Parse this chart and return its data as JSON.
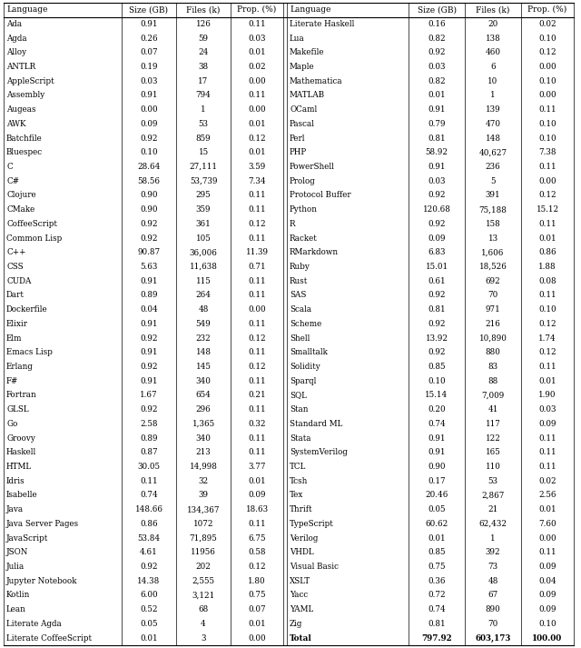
{
  "left_table": [
    [
      "Ada",
      "0.91",
      "126",
      "0.11"
    ],
    [
      "Agda",
      "0.26",
      "59",
      "0.03"
    ],
    [
      "Alloy",
      "0.07",
      "24",
      "0.01"
    ],
    [
      "ANTLR",
      "0.19",
      "38",
      "0.02"
    ],
    [
      "AppleScript",
      "0.03",
      "17",
      "0.00"
    ],
    [
      "Assembly",
      "0.91",
      "794",
      "0.11"
    ],
    [
      "Augeas",
      "0.00",
      "1",
      "0.00"
    ],
    [
      "AWK",
      "0.09",
      "53",
      "0.01"
    ],
    [
      "Batchfile",
      "0.92",
      "859",
      "0.12"
    ],
    [
      "Bluespec",
      "0.10",
      "15",
      "0.01"
    ],
    [
      "C",
      "28.64",
      "27,111",
      "3.59"
    ],
    [
      "C#",
      "58.56",
      "53,739",
      "7.34"
    ],
    [
      "Clojure",
      "0.90",
      "295",
      "0.11"
    ],
    [
      "CMake",
      "0.90",
      "359",
      "0.11"
    ],
    [
      "CoffeeScript",
      "0.92",
      "361",
      "0.12"
    ],
    [
      "Common Lisp",
      "0.92",
      "105",
      "0.11"
    ],
    [
      "C++",
      "90.87",
      "36,006",
      "11.39"
    ],
    [
      "CSS",
      "5.63",
      "11,638",
      "0.71"
    ],
    [
      "CUDA",
      "0.91",
      "115",
      "0.11"
    ],
    [
      "Dart",
      "0.89",
      "264",
      "0.11"
    ],
    [
      "Dockerfile",
      "0.04",
      "48",
      "0.00"
    ],
    [
      "Elixir",
      "0.91",
      "549",
      "0.11"
    ],
    [
      "Elm",
      "0.92",
      "232",
      "0.12"
    ],
    [
      "Emacs Lisp",
      "0.91",
      "148",
      "0.11"
    ],
    [
      "Erlang",
      "0.92",
      "145",
      "0.12"
    ],
    [
      "F#",
      "0.91",
      "340",
      "0.11"
    ],
    [
      "Fortran",
      "1.67",
      "654",
      "0.21"
    ],
    [
      "GLSL",
      "0.92",
      "296",
      "0.11"
    ],
    [
      "Go",
      "2.58",
      "1,365",
      "0.32"
    ],
    [
      "Groovy",
      "0.89",
      "340",
      "0.11"
    ],
    [
      "Haskell",
      "0.87",
      "213",
      "0.11"
    ],
    [
      "HTML",
      "30.05",
      "14,998",
      "3.77"
    ],
    [
      "Idris",
      "0.11",
      "32",
      "0.01"
    ],
    [
      "Isabelle",
      "0.74",
      "39",
      "0.09"
    ],
    [
      "Java",
      "148.66",
      "134,367",
      "18.63"
    ],
    [
      "Java Server Pages",
      "0.86",
      "1072",
      "0.11"
    ],
    [
      "JavaScript",
      "53.84",
      "71,895",
      "6.75"
    ],
    [
      "JSON",
      "4.61",
      "11956",
      "0.58"
    ],
    [
      "Julia",
      "0.92",
      "202",
      "0.12"
    ],
    [
      "Jupyter Notebook",
      "14.38",
      "2,555",
      "1.80"
    ],
    [
      "Kotlin",
      "6.00",
      "3,121",
      "0.75"
    ],
    [
      "Lean",
      "0.52",
      "68",
      "0.07"
    ],
    [
      "Literate Agda",
      "0.05",
      "4",
      "0.01"
    ],
    [
      "Literate CoffeeScript",
      "0.01",
      "3",
      "0.00"
    ]
  ],
  "right_table": [
    [
      "Literate Haskell",
      "0.16",
      "20",
      "0.02"
    ],
    [
      "Lua",
      "0.82",
      "138",
      "0.10"
    ],
    [
      "Makefile",
      "0.92",
      "460",
      "0.12"
    ],
    [
      "Maple",
      "0.03",
      "6",
      "0.00"
    ],
    [
      "Mathematica",
      "0.82",
      "10",
      "0.10"
    ],
    [
      "MATLAB",
      "0.01",
      "1",
      "0.00"
    ],
    [
      "OCaml",
      "0.91",
      "139",
      "0.11"
    ],
    [
      "Pascal",
      "0.79",
      "470",
      "0.10"
    ],
    [
      "Perl",
      "0.81",
      "148",
      "0.10"
    ],
    [
      "PHP",
      "58.92",
      "40,627",
      "7.38"
    ],
    [
      "PowerShell",
      "0.91",
      "236",
      "0.11"
    ],
    [
      "Prolog",
      "0.03",
      "5",
      "0.00"
    ],
    [
      "Protocol Buffer",
      "0.92",
      "391",
      "0.12"
    ],
    [
      "Python",
      "120.68",
      "75,188",
      "15.12"
    ],
    [
      "R",
      "0.92",
      "158",
      "0.11"
    ],
    [
      "Racket",
      "0.09",
      "13",
      "0.01"
    ],
    [
      "RMarkdown",
      "6.83",
      "1,606",
      "0.86"
    ],
    [
      "Ruby",
      "15.01",
      "18,526",
      "1.88"
    ],
    [
      "Rust",
      "0.61",
      "692",
      "0.08"
    ],
    [
      "SAS",
      "0.92",
      "70",
      "0.11"
    ],
    [
      "Scala",
      "0.81",
      "971",
      "0.10"
    ],
    [
      "Scheme",
      "0.92",
      "216",
      "0.12"
    ],
    [
      "Shell",
      "13.92",
      "10,890",
      "1.74"
    ],
    [
      "Smalltalk",
      "0.92",
      "880",
      "0.12"
    ],
    [
      "Solidity",
      "0.85",
      "83",
      "0.11"
    ],
    [
      "Sparql",
      "0.10",
      "88",
      "0.01"
    ],
    [
      "SQL",
      "15.14",
      "7,009",
      "1.90"
    ],
    [
      "Stan",
      "0.20",
      "41",
      "0.03"
    ],
    [
      "Standard ML",
      "0.74",
      "117",
      "0.09"
    ],
    [
      "Stata",
      "0.91",
      "122",
      "0.11"
    ],
    [
      "SystemVerilog",
      "0.91",
      "165",
      "0.11"
    ],
    [
      "TCL",
      "0.90",
      "110",
      "0.11"
    ],
    [
      "Tcsh",
      "0.17",
      "53",
      "0.02"
    ],
    [
      "Tex",
      "20.46",
      "2,867",
      "2.56"
    ],
    [
      "Thrift",
      "0.05",
      "21",
      "0.01"
    ],
    [
      "TypeScript",
      "60.62",
      "62,432",
      "7.60"
    ],
    [
      "Verilog",
      "0.01",
      "1",
      "0.00"
    ],
    [
      "VHDL",
      "0.85",
      "392",
      "0.11"
    ],
    [
      "Visual Basic",
      "0.75",
      "73",
      "0.09"
    ],
    [
      "XSLT",
      "0.36",
      "48",
      "0.04"
    ],
    [
      "Yacc",
      "0.72",
      "67",
      "0.09"
    ],
    [
      "YAML",
      "0.74",
      "890",
      "0.09"
    ],
    [
      "Zig",
      "0.81",
      "70",
      "0.10"
    ],
    [
      "Total",
      "797.92",
      "603,173",
      "100.00"
    ]
  ],
  "headers": [
    "Language",
    "Size (GB)",
    "Files (k)",
    "Prop. (%)"
  ],
  "font_size": 6.3,
  "header_font_size": 6.5
}
